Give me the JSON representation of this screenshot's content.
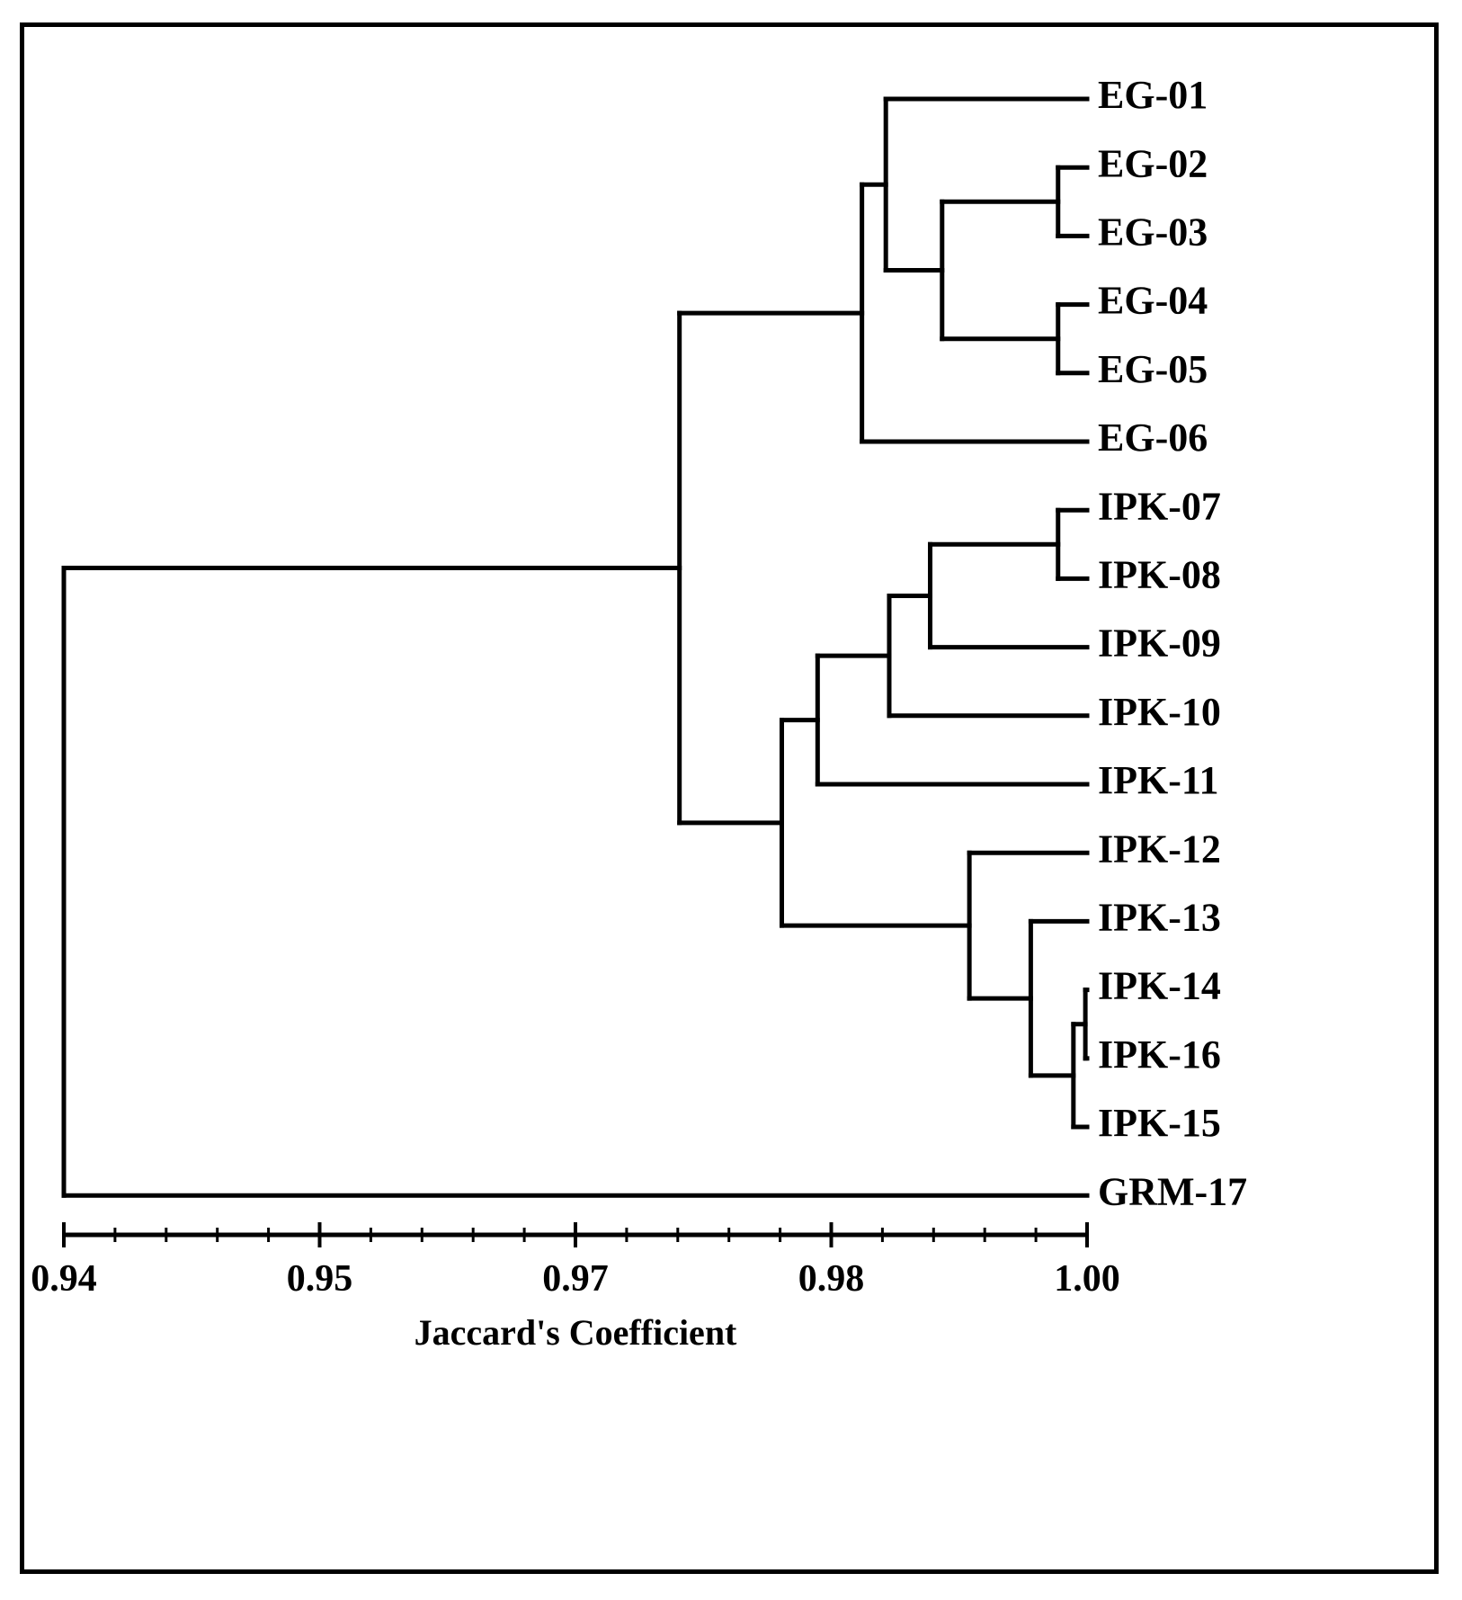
{
  "chart_data": {
    "type": "dendrogram",
    "title": "",
    "xlabel": "Jaccard's Coefficient",
    "xlim": [
      0.94,
      1.0
    ],
    "x_ticks": [
      0.94,
      0.95,
      0.97,
      0.98,
      1.0
    ],
    "x_tick_labels": [
      "0.94",
      "0.95",
      "0.97",
      "0.98",
      "1.00"
    ],
    "leaves": [
      "EG-01",
      "EG-02",
      "EG-03",
      "EG-04",
      "EG-05",
      "EG-06",
      "IPK-07",
      "IPK-08",
      "IPK-09",
      "IPK-10",
      "IPK-11",
      "IPK-12",
      "IPK-13",
      "IPK-14",
      "IPK-16",
      "IPK-15",
      "GRM-17"
    ],
    "merges": [
      {
        "name": "n-eg02-eg03",
        "children": [
          "EG-02",
          "EG-03"
        ],
        "similarity": 0.9983
      },
      {
        "name": "n-eg04-eg05",
        "children": [
          "EG-04",
          "EG-05"
        ],
        "similarity": 0.9983
      },
      {
        "name": "n-eg02to05",
        "children": [
          "n-eg02-eg03",
          "n-eg04-eg05"
        ],
        "similarity": 0.9915
      },
      {
        "name": "n-eg01to05",
        "children": [
          "EG-01",
          "n-eg02to05"
        ],
        "similarity": 0.9882
      },
      {
        "name": "n-eg-all",
        "children": [
          "n-eg01to05",
          "EG-06"
        ],
        "similarity": 0.9868
      },
      {
        "name": "n-ipk07-08",
        "children": [
          "IPK-07",
          "IPK-08"
        ],
        "similarity": 0.9983
      },
      {
        "name": "n-ipk07to09",
        "children": [
          "n-ipk07-08",
          "IPK-09"
        ],
        "similarity": 0.9908
      },
      {
        "name": "n-ipk07to10",
        "children": [
          "n-ipk07to09",
          "IPK-10"
        ],
        "similarity": 0.9884
      },
      {
        "name": "n-ipk07to11",
        "children": [
          "n-ipk07to10",
          "IPK-11"
        ],
        "similarity": 0.9842
      },
      {
        "name": "n-ipk14-16",
        "children": [
          "IPK-14",
          "IPK-16"
        ],
        "similarity": 0.9999
      },
      {
        "name": "n-ipk14to15",
        "children": [
          "n-ipk14-16",
          "IPK-15"
        ],
        "similarity": 0.9992
      },
      {
        "name": "n-ipk13to15",
        "children": [
          "IPK-13",
          "n-ipk14to15"
        ],
        "similarity": 0.9967
      },
      {
        "name": "n-ipk12to15",
        "children": [
          "IPK-12",
          "n-ipk13to15"
        ],
        "similarity": 0.9931
      },
      {
        "name": "n-ipk-all",
        "children": [
          "n-ipk07to11",
          "n-ipk12to15"
        ],
        "similarity": 0.9821
      },
      {
        "name": "n-eg-ipk",
        "children": [
          "n-eg-all",
          "n-ipk-all"
        ],
        "similarity": 0.9761
      },
      {
        "name": "n-root",
        "children": [
          "n-eg-ipk",
          "GRM-17"
        ],
        "similarity": 0.94
      }
    ]
  }
}
